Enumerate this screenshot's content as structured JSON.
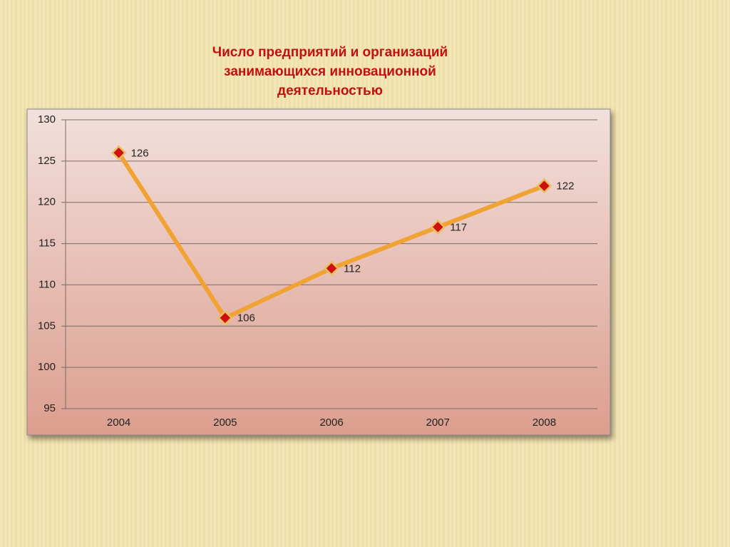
{
  "chart_data": {
    "type": "line",
    "title": "Число предприятий и организаций занимающихся инновационной деятельностью",
    "categories": [
      "2004",
      "2005",
      "2006",
      "2007",
      "2008"
    ],
    "values": [
      126,
      106,
      112,
      117,
      122
    ],
    "color": "#f0a232",
    "marker_color": "#d01010",
    "ylim": [
      95,
      130
    ],
    "yticks": [
      95,
      100,
      105,
      110,
      115,
      120,
      125,
      130
    ],
    "grid": true
  }
}
